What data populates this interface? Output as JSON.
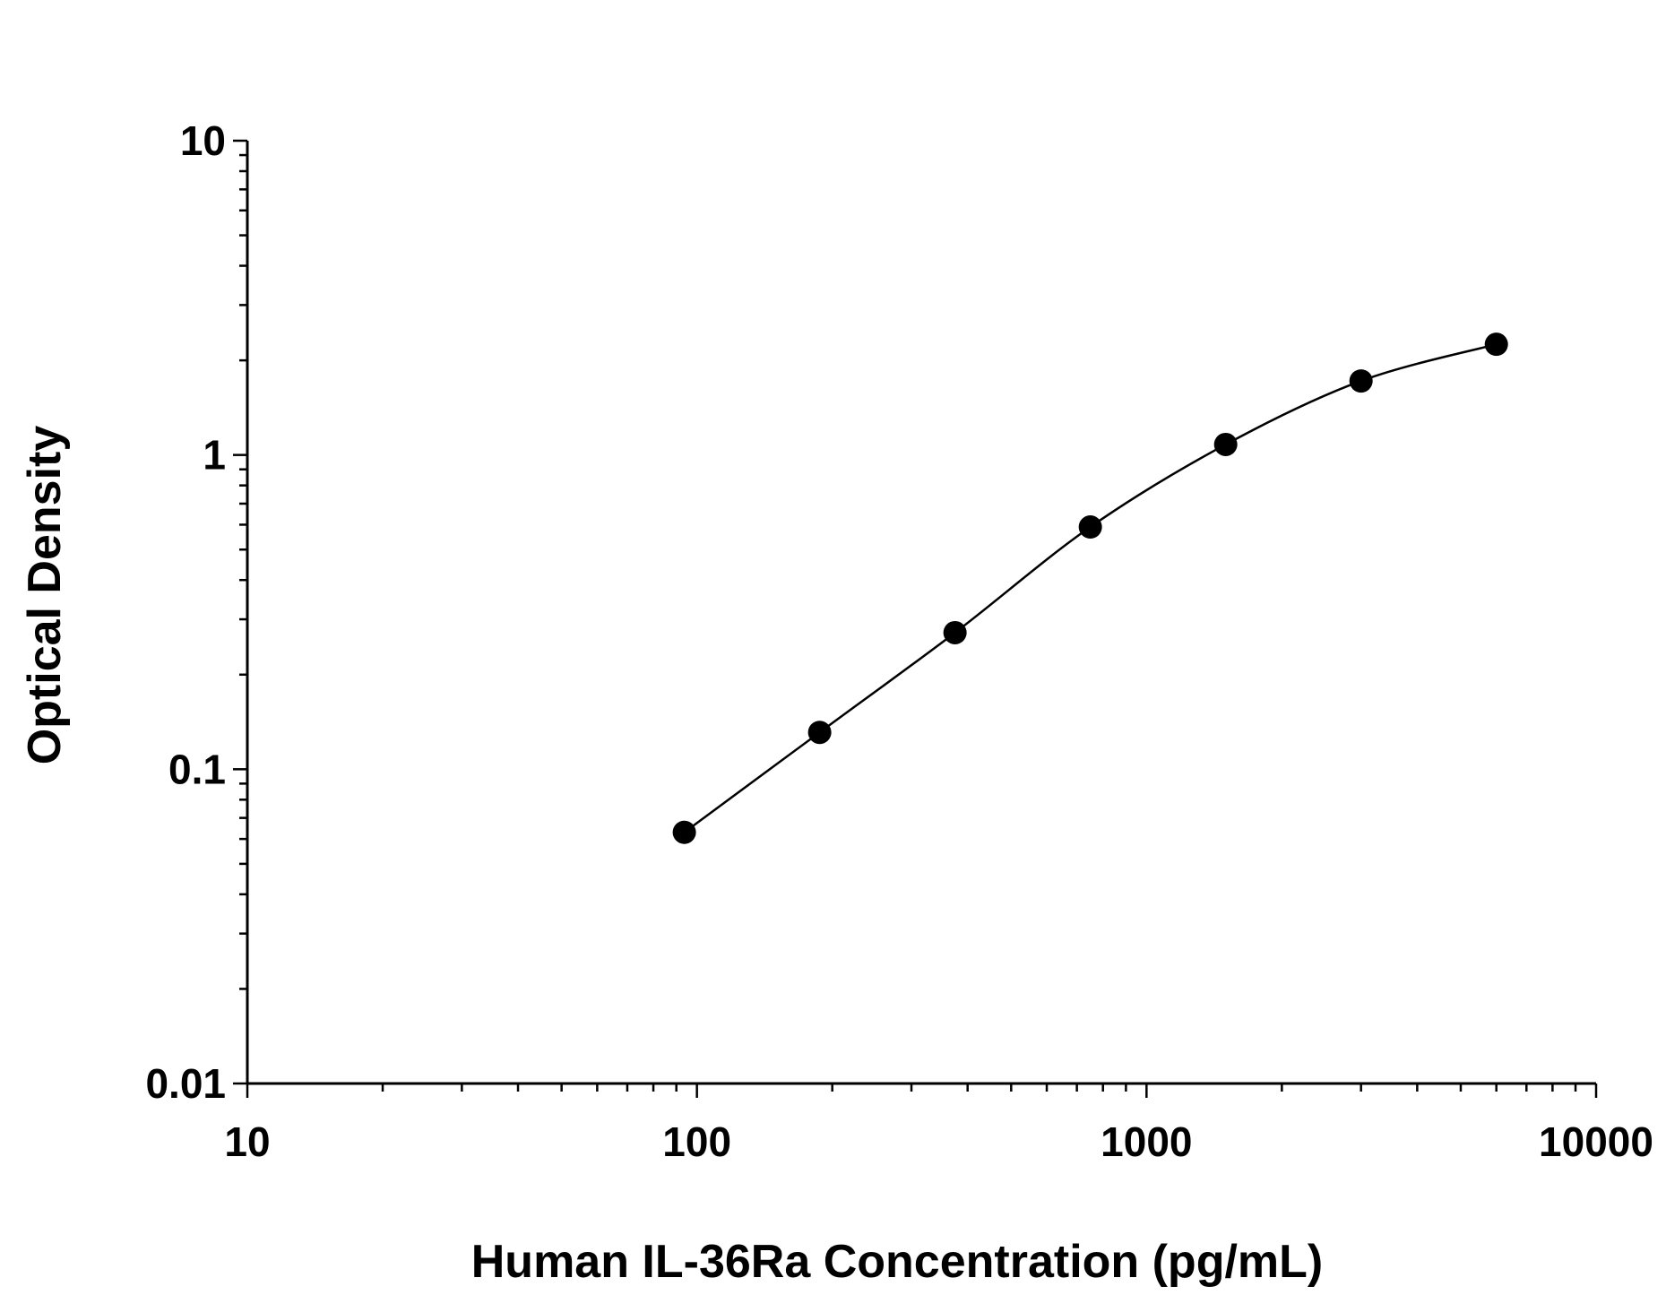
{
  "chart_data": {
    "type": "scatter",
    "title": "",
    "xlabel": "Human IL-36Ra Concentration (pg/mL)",
    "ylabel": "Optical Density",
    "xscale": "log",
    "yscale": "log",
    "xlim": [
      10,
      10000
    ],
    "ylim": [
      0.01,
      10
    ],
    "x_ticks": [
      "10",
      "100",
      "1000",
      "10000"
    ],
    "y_ticks": [
      "0.01",
      "0.1",
      "1",
      "10"
    ],
    "grid": false,
    "legend": "none",
    "series": [
      {
        "x": [
          93.75,
          187.5,
          375,
          750,
          1500,
          3000,
          6000
        ],
        "y": [
          0.063,
          0.131,
          0.272,
          0.59,
          1.08,
          1.72,
          2.25
        ],
        "marker": "filled-circle",
        "fit_curve": true,
        "color": "#000000"
      }
    ]
  }
}
